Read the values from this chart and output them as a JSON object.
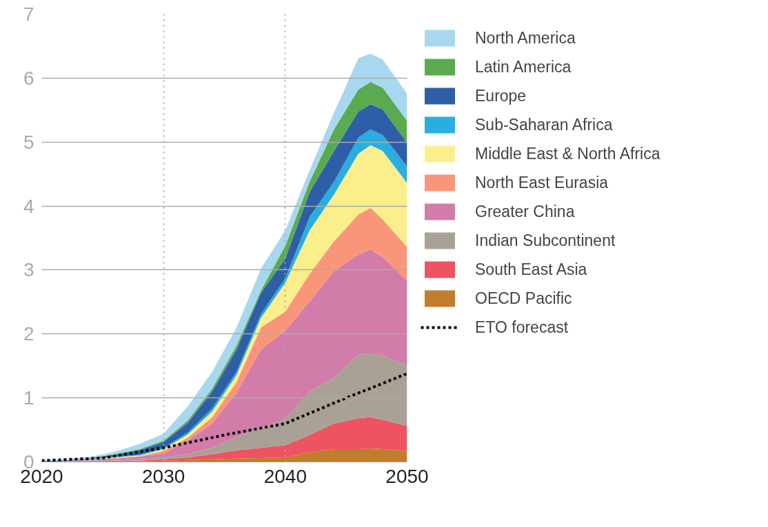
{
  "chart_data": {
    "type": "area",
    "stacked": true,
    "x": [
      2020,
      2022,
      2024,
      2026,
      2028,
      2030,
      2032,
      2034,
      2036,
      2038,
      2040,
      2042,
      2044,
      2046,
      2047,
      2048,
      2050
    ],
    "series": [
      {
        "name": "OECD Pacific",
        "color": "#c07d2c",
        "values": [
          0,
          0,
          0.01,
          0.01,
          0.01,
          0.02,
          0.03,
          0.04,
          0.05,
          0.06,
          0.07,
          0.15,
          0.2,
          0.2,
          0.21,
          0.2,
          0.17
        ]
      },
      {
        "name": "South East Asia",
        "color": "#ee5360",
        "values": [
          0,
          0.01,
          0,
          0.01,
          0.01,
          0.02,
          0.04,
          0.08,
          0.13,
          0.16,
          0.19,
          0.27,
          0.4,
          0.48,
          0.49,
          0.46,
          0.39
        ]
      },
      {
        "name": "Indian Subcontinent",
        "color": "#a9a196",
        "values": [
          0,
          0,
          0.01,
          0.01,
          0.03,
          0.03,
          0.05,
          0.1,
          0.21,
          0.31,
          0.41,
          0.68,
          0.71,
          1.0,
          1.0,
          1.0,
          0.95
        ]
      },
      {
        "name": "Greater China",
        "color": "#d17ca9",
        "values": [
          0.01,
          0.01,
          0.01,
          0.02,
          0.03,
          0.06,
          0.21,
          0.38,
          0.69,
          1.23,
          1.38,
          1.41,
          1.67,
          1.56,
          1.62,
          1.54,
          1.32
        ]
      },
      {
        "name": "North East Eurasia",
        "color": "#f9967a",
        "values": [
          0,
          0,
          0.01,
          0.01,
          0.01,
          0.04,
          0.05,
          0.1,
          0.17,
          0.34,
          0.3,
          0.43,
          0.47,
          0.63,
          0.65,
          0.59,
          0.53
        ]
      },
      {
        "name": "Middle East & North Africa",
        "color": "#fbef8c",
        "values": [
          0,
          0,
          0,
          0.01,
          0.01,
          0.03,
          0.05,
          0.09,
          0.11,
          0.15,
          0.45,
          0.68,
          0.73,
          0.95,
          0.98,
          1.07,
          1.0
        ]
      },
      {
        "name": "Sub-Saharan Africa",
        "color": "#2aaee0",
        "values": [
          0,
          0.01,
          0.01,
          0.01,
          0.01,
          0.02,
          0.03,
          0.05,
          0.05,
          0.06,
          0.07,
          0.21,
          0.2,
          0.25,
          0.25,
          0.25,
          0.26
        ]
      },
      {
        "name": "Europe",
        "color": "#2f5ea8",
        "values": [
          0.01,
          0,
          0.01,
          0.03,
          0.07,
          0.09,
          0.15,
          0.26,
          0.35,
          0.33,
          0.31,
          0.39,
          0.48,
          0.41,
          0.39,
          0.4,
          0.37
        ]
      },
      {
        "name": "Latin America",
        "color": "#5aab4f",
        "values": [
          0,
          0,
          0,
          0.01,
          0.02,
          0.02,
          0.04,
          0.05,
          0.06,
          0.04,
          0.2,
          0.16,
          0.34,
          0.34,
          0.35,
          0.34,
          0.34
        ]
      },
      {
        "name": "North America",
        "color": "#a8d8ef",
        "values": [
          0,
          0.01,
          0.02,
          0.04,
          0.08,
          0.11,
          0.22,
          0.26,
          0.28,
          0.34,
          0.24,
          0.18,
          0.26,
          0.49,
          0.44,
          0.44,
          0.43
        ]
      },
      {
        "name": "ETO forecast",
        "type": "line",
        "line_style": "dotted",
        "color": "#000000",
        "x": [
          2020,
          2025,
          2030,
          2035,
          2040,
          2045,
          2050
        ],
        "values": [
          0.02,
          0.06,
          0.22,
          0.42,
          0.6,
          1.0,
          1.38
        ]
      }
    ],
    "xlim": [
      2020,
      2050
    ],
    "ylim": [
      0,
      7
    ],
    "xticks": [
      2020,
      2030,
      2040,
      2050
    ],
    "yticks": [
      0,
      1,
      2,
      3,
      4,
      5,
      6,
      7
    ],
    "grid": true,
    "legend": "right"
  }
}
